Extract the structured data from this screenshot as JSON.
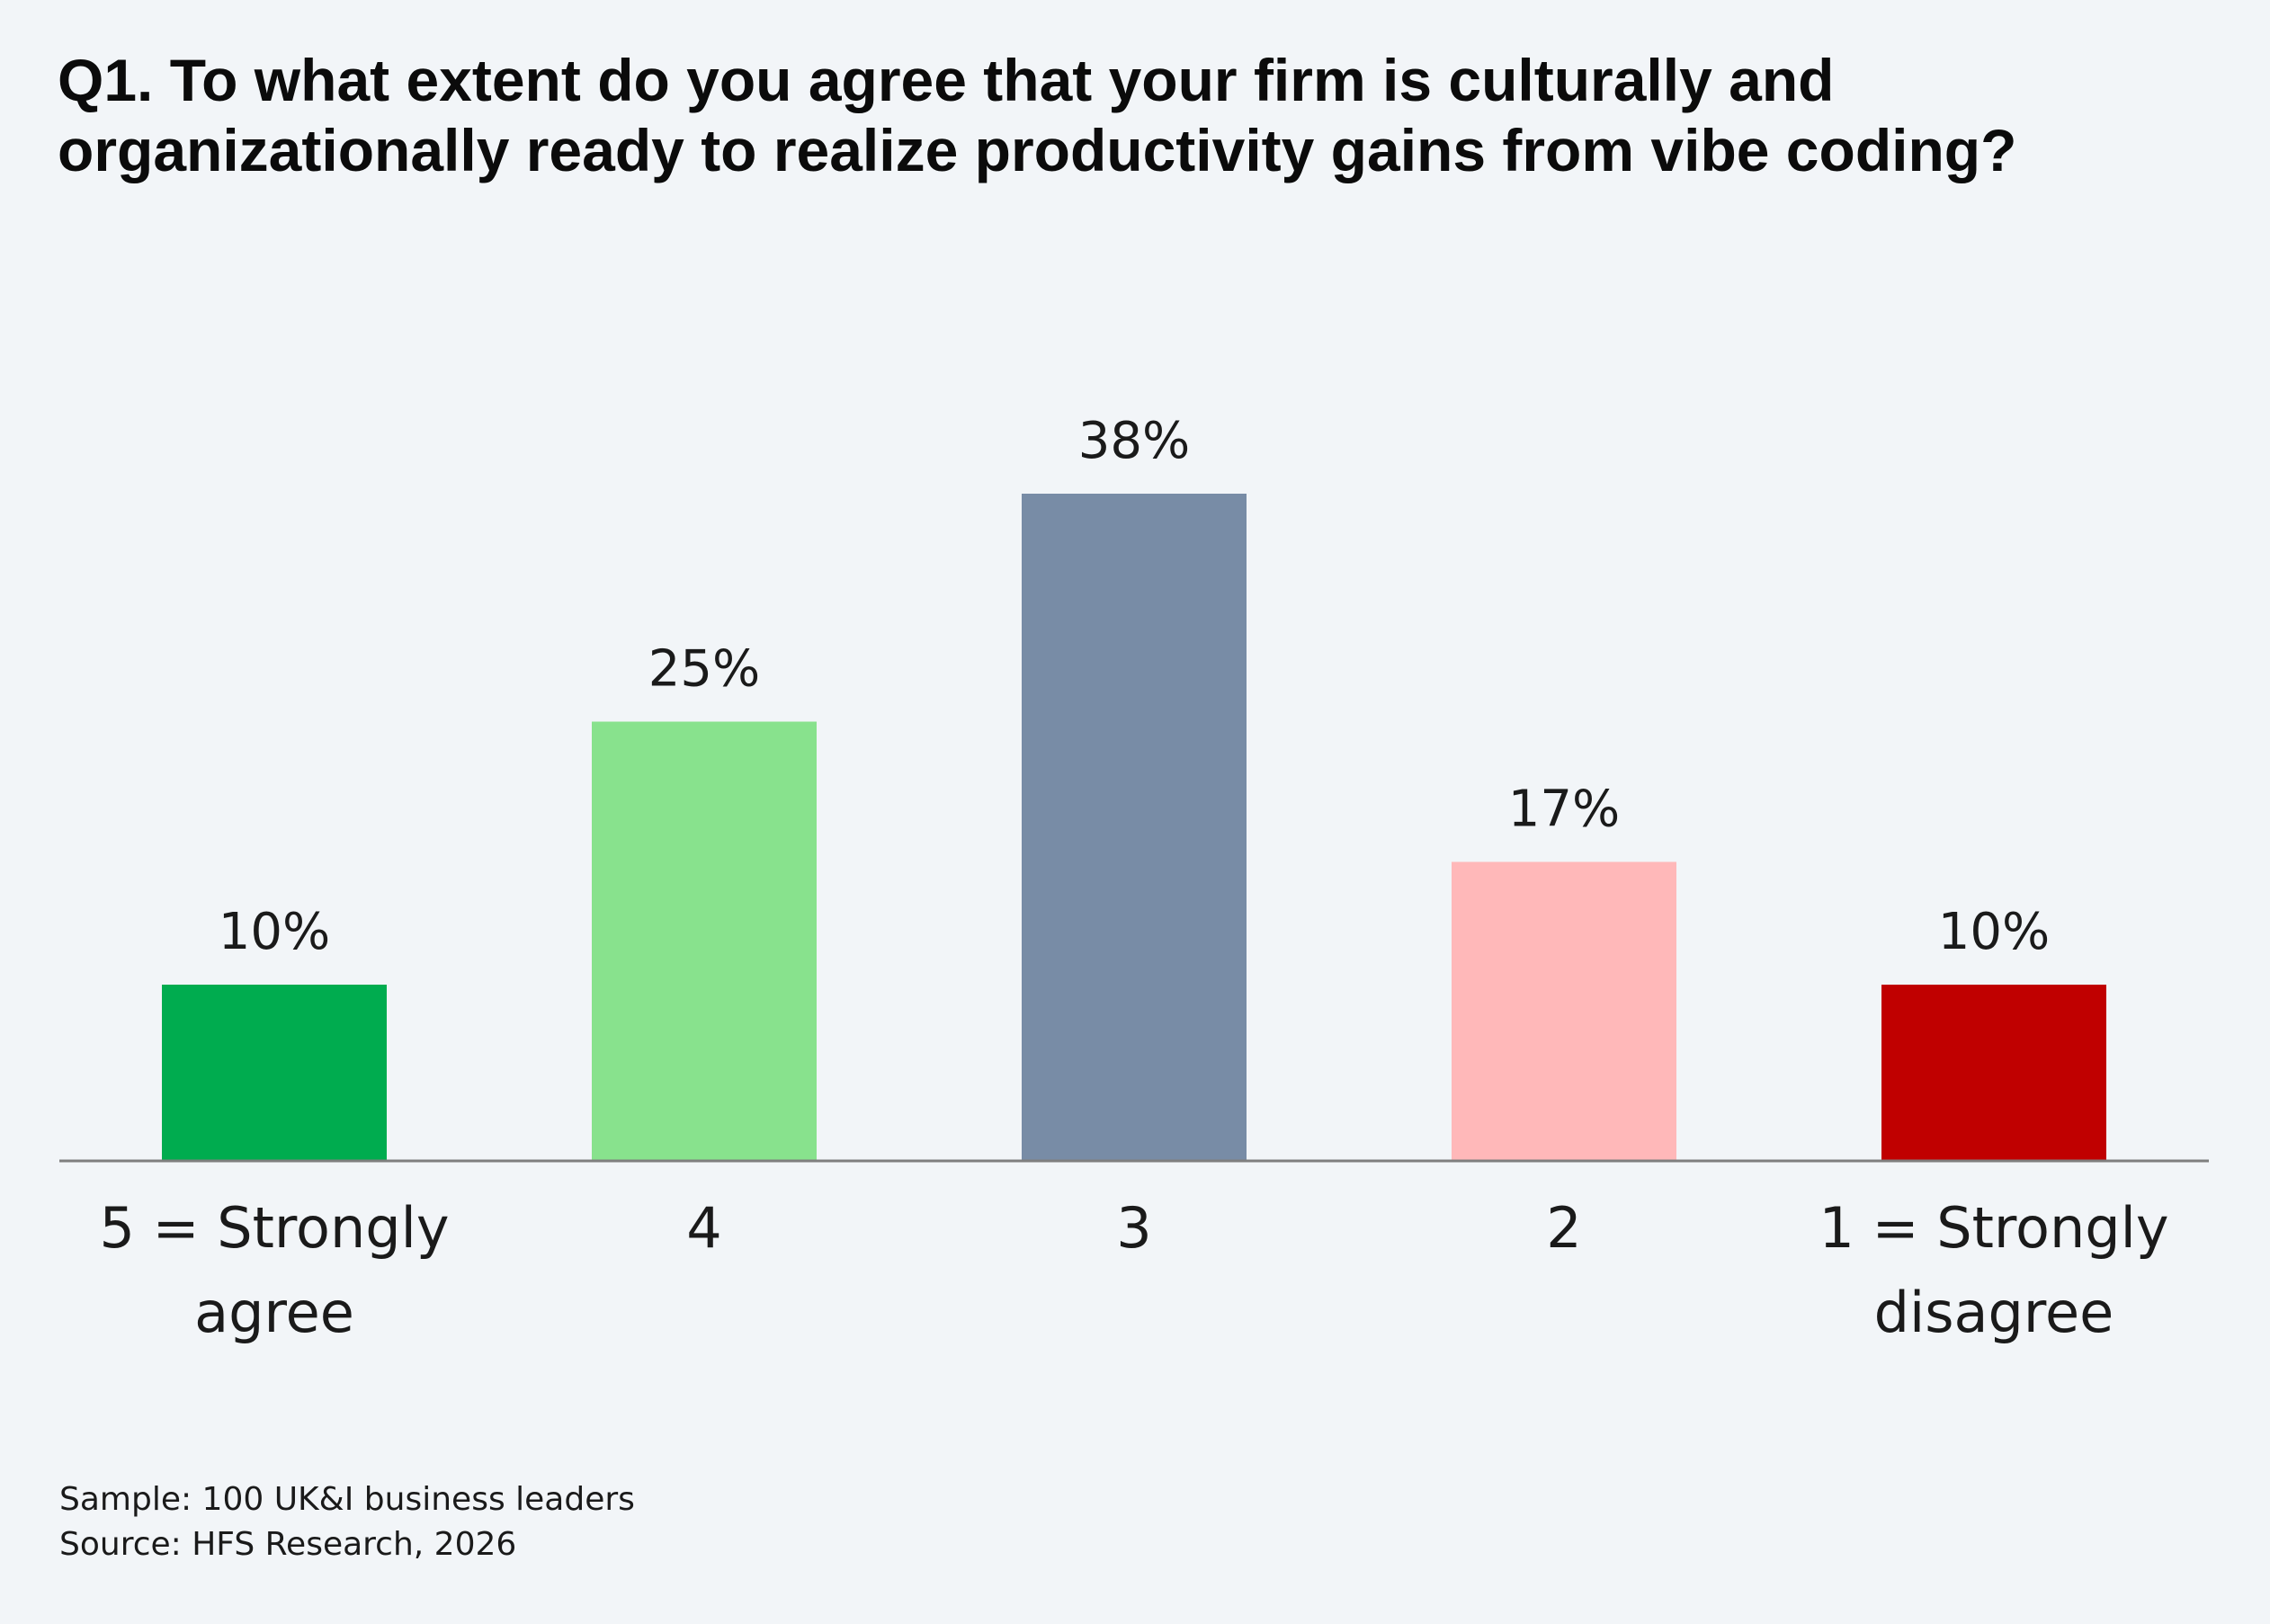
{
  "chart_data": {
    "type": "bar",
    "title": "Q1. To what extent do you agree that your firm is culturally and organizationally ready to realize productivity gains from vibe coding?",
    "title_lines": [
      "Q1. To what extent do you agree that your firm is culturally and",
      "organizationally ready to realize productivity gains from vibe coding?"
    ],
    "categories": [
      "5 = Strongly agree",
      "4",
      "3",
      "2",
      "1 = Strongly disagree"
    ],
    "category_lines": [
      [
        "5 = Strongly",
        "agree"
      ],
      [
        "4"
      ],
      [
        "3"
      ],
      [
        "2"
      ],
      [
        "1 = Strongly",
        "disagree"
      ]
    ],
    "values": [
      10,
      25,
      38,
      17,
      10
    ],
    "value_labels": [
      "10%",
      "25%",
      "38%",
      "17%",
      "10%"
    ],
    "colors": [
      "#00ac4f",
      "#88e28d",
      "#788ca6",
      "#ffb8b9",
      "#c00000"
    ],
    "ylim": [
      0,
      38
    ],
    "grid": false,
    "legend": false
  },
  "footnotes": {
    "sample": "Sample: 100 UK&I business leaders",
    "source": "Source: HFS Research, 2026"
  },
  "colors": {
    "background": "#f2f5f8",
    "axis_line": "#7f7f7f",
    "text": "#1a1a1a"
  }
}
